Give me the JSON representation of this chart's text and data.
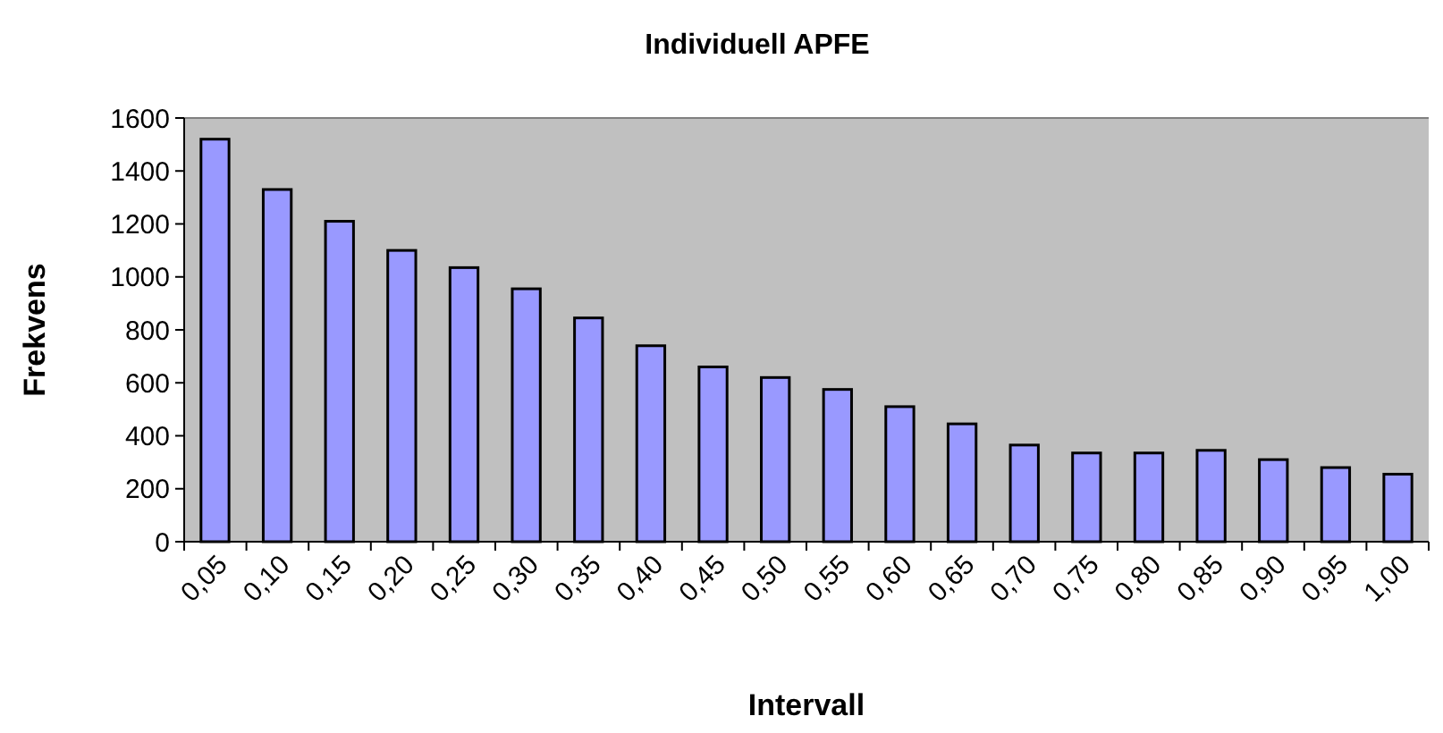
{
  "chart_data": {
    "type": "bar",
    "title": "Individuell APFE",
    "xlabel": "Intervall",
    "ylabel": "Frekvens",
    "categories": [
      "0,05",
      "0,10",
      "0,15",
      "0,20",
      "0,25",
      "0,30",
      "0,35",
      "0,40",
      "0,45",
      "0,50",
      "0,55",
      "0,60",
      "0,65",
      "0,70",
      "0,75",
      "0,80",
      "0,85",
      "0,90",
      "0,95",
      "1,00"
    ],
    "values": [
      1520,
      1330,
      1210,
      1100,
      1035,
      955,
      845,
      740,
      660,
      620,
      575,
      510,
      445,
      365,
      335,
      335,
      345,
      310,
      280,
      255
    ],
    "color": "#9999ff",
    "ylim": [
      0,
      1600
    ],
    "yticks": [
      0,
      200,
      400,
      600,
      800,
      1000,
      1200,
      1400,
      1600
    ],
    "grid": false
  }
}
